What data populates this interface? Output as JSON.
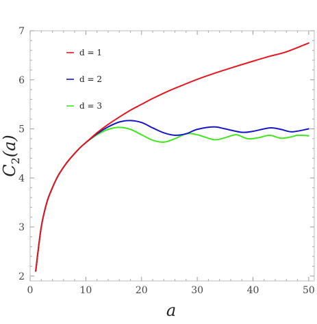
{
  "chart_data": {
    "type": "line",
    "xlabel": "a",
    "ylabel_main": "C",
    "ylabel_sub": "2",
    "ylabel_arg": "(a)",
    "xlim": [
      0,
      51
    ],
    "ylim": [
      1.9,
      7.0
    ],
    "x_ticks": [
      0,
      10,
      20,
      30,
      40,
      50
    ],
    "y_ticks": [
      2,
      3,
      4,
      5,
      6,
      7
    ],
    "legend_placement": "top-left",
    "grid": false,
    "series": [
      {
        "name": "d = 1",
        "color": "#e8151c",
        "points": [
          [
            1,
            2.1
          ],
          [
            2,
            3.0
          ],
          [
            3,
            3.5
          ],
          [
            4,
            3.8
          ],
          [
            5,
            4.04
          ],
          [
            6,
            4.22
          ],
          [
            7,
            4.37
          ],
          [
            8,
            4.5
          ],
          [
            9,
            4.62
          ],
          [
            10,
            4.72
          ],
          [
            12,
            4.92
          ],
          [
            14,
            5.09
          ],
          [
            16,
            5.24
          ],
          [
            18,
            5.38
          ],
          [
            20,
            5.5
          ],
          [
            22,
            5.62
          ],
          [
            25,
            5.78
          ],
          [
            28,
            5.92
          ],
          [
            30,
            6.01
          ],
          [
            33,
            6.13
          ],
          [
            36,
            6.24
          ],
          [
            40,
            6.38
          ],
          [
            43,
            6.48
          ],
          [
            46,
            6.57
          ],
          [
            50,
            6.75
          ]
        ]
      },
      {
        "name": "d = 2",
        "color": "#1414c8",
        "points": [
          [
            1,
            2.1
          ],
          [
            2,
            3.0
          ],
          [
            3,
            3.5
          ],
          [
            4,
            3.8
          ],
          [
            5,
            4.04
          ],
          [
            6,
            4.22
          ],
          [
            7,
            4.37
          ],
          [
            8,
            4.5
          ],
          [
            9,
            4.62
          ],
          [
            10,
            4.72
          ],
          [
            12,
            4.9
          ],
          [
            14,
            5.04
          ],
          [
            16,
            5.14
          ],
          [
            18,
            5.17
          ],
          [
            20,
            5.13
          ],
          [
            22,
            5.02
          ],
          [
            24,
            4.92
          ],
          [
            26,
            4.87
          ],
          [
            28,
            4.9
          ],
          [
            30,
            4.99
          ],
          [
            33,
            5.04
          ],
          [
            35,
            5.0
          ],
          [
            38,
            4.93
          ],
          [
            40,
            4.95
          ],
          [
            43,
            5.02
          ],
          [
            45,
            4.99
          ],
          [
            47,
            4.94
          ],
          [
            50,
            5.0
          ]
        ]
      },
      {
        "name": "d = 3",
        "color": "#3ee81c",
        "points": [
          [
            1,
            2.1
          ],
          [
            2,
            3.0
          ],
          [
            3,
            3.5
          ],
          [
            4,
            3.8
          ],
          [
            5,
            4.04
          ],
          [
            6,
            4.22
          ],
          [
            7,
            4.37
          ],
          [
            8,
            4.5
          ],
          [
            9,
            4.62
          ],
          [
            10,
            4.72
          ],
          [
            12,
            4.88
          ],
          [
            14,
            4.99
          ],
          [
            16,
            5.03
          ],
          [
            18,
            4.99
          ],
          [
            20,
            4.88
          ],
          [
            22,
            4.77
          ],
          [
            24,
            4.73
          ],
          [
            26,
            4.8
          ],
          [
            28,
            4.9
          ],
          [
            30,
            4.88
          ],
          [
            33,
            4.78
          ],
          [
            35,
            4.82
          ],
          [
            37,
            4.88
          ],
          [
            39,
            4.8
          ],
          [
            41,
            4.82
          ],
          [
            43,
            4.87
          ],
          [
            45,
            4.81
          ],
          [
            47,
            4.84
          ],
          [
            48,
            4.87
          ],
          [
            50,
            4.86
          ]
        ]
      }
    ]
  }
}
